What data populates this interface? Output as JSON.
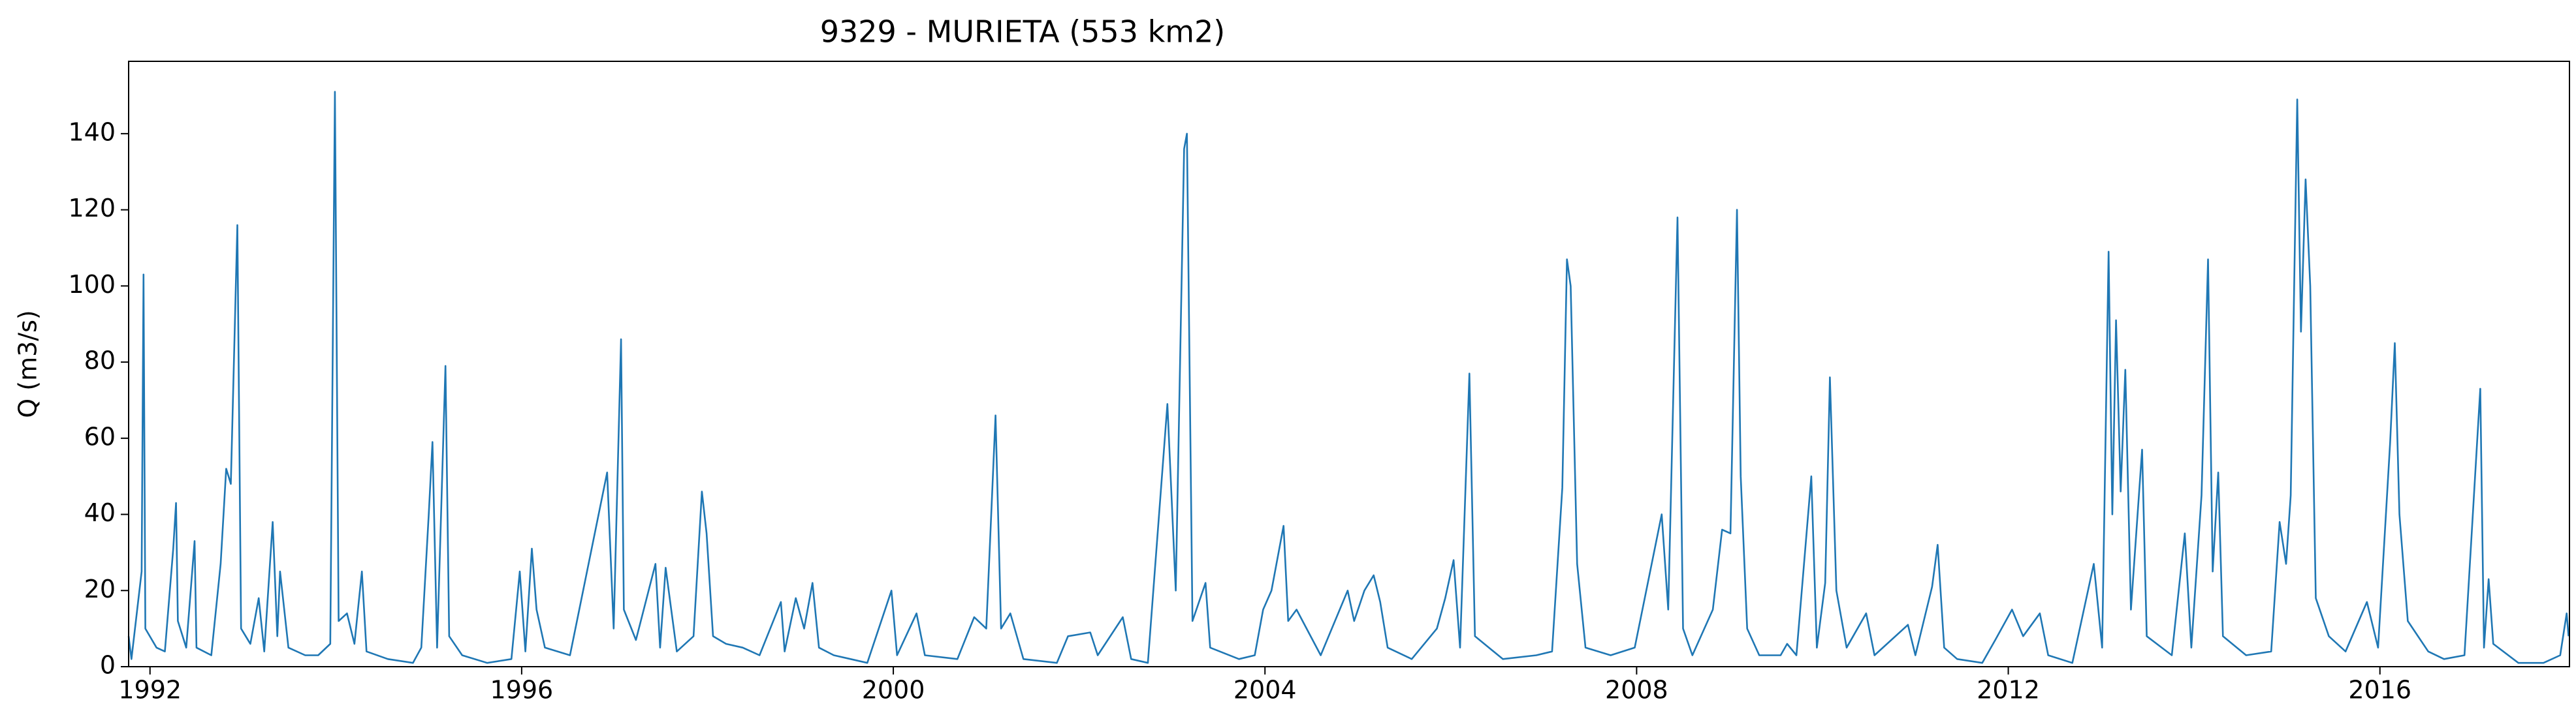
{
  "chart_data": {
    "type": "line",
    "title": "9329 - MURIETA (553 km2)",
    "ylabel": "Q (m3/s)",
    "color": "#1f77b4",
    "grid": false,
    "xlim": [
      1991.77,
      2018.04
    ],
    "ylim": [
      0,
      159
    ],
    "xticks": [
      1992,
      1996,
      2000,
      2004,
      2008,
      2012,
      2016
    ],
    "yticks": [
      0,
      20,
      40,
      60,
      80,
      100,
      120,
      140
    ],
    "x": [
      1991.77,
      1991.8,
      1991.91,
      1991.93,
      1991.95,
      1992.07,
      1992.16,
      1992.25,
      1992.28,
      1992.3,
      1992.39,
      1992.48,
      1992.5,
      1992.66,
      1992.76,
      1992.82,
      1992.87,
      1992.94,
      1992.98,
      1993.08,
      1993.17,
      1993.23,
      1993.32,
      1993.37,
      1993.4,
      1993.49,
      1993.67,
      1993.81,
      1993.94,
      1993.99,
      1994.03,
      1994.12,
      1994.2,
      1994.28,
      1994.33,
      1994.56,
      1994.83,
      1994.92,
      1995.0,
      1995.04,
      1995.09,
      1995.18,
      1995.22,
      1995.36,
      1995.63,
      1995.89,
      1995.98,
      1996.04,
      1996.11,
      1996.16,
      1996.25,
      1996.52,
      1996.92,
      1996.99,
      1997.07,
      1997.1,
      1997.23,
      1997.44,
      1997.49,
      1997.55,
      1997.67,
      1997.85,
      1997.94,
      1997.99,
      1998.06,
      1998.2,
      1998.38,
      1998.56,
      1998.79,
      1998.83,
      1998.95,
      1999.04,
      1999.13,
      1999.2,
      1999.36,
      1999.54,
      1999.72,
      1999.98,
      2000.04,
      2000.25,
      2000.34,
      2000.69,
      2000.87,
      2001.0,
      2001.1,
      2001.16,
      2001.26,
      2001.4,
      2001.76,
      2001.88,
      2002.12,
      2002.2,
      2002.47,
      2002.56,
      2002.74,
      2002.95,
      2003.04,
      2003.13,
      2003.16,
      2003.22,
      2003.36,
      2003.41,
      2003.72,
      2003.89,
      2003.98,
      2004.07,
      2004.2,
      2004.25,
      2004.34,
      2004.6,
      2004.89,
      2004.96,
      2005.07,
      2005.17,
      2005.24,
      2005.32,
      2005.58,
      2005.85,
      2005.94,
      2006.03,
      2006.1,
      2006.2,
      2006.26,
      2006.56,
      2006.92,
      2007.09,
      2007.2,
      2007.25,
      2007.29,
      2007.36,
      2007.45,
      2007.72,
      2007.98,
      2008.27,
      2008.34,
      2008.44,
      2008.5,
      2008.6,
      2008.82,
      2008.92,
      2009.01,
      2009.08,
      2009.12,
      2009.19,
      2009.32,
      2009.55,
      2009.62,
      2009.72,
      2009.88,
      2009.94,
      2010.03,
      2010.08,
      2010.15,
      2010.26,
      2010.47,
      2010.56,
      2010.92,
      2011.0,
      2011.18,
      2011.24,
      2011.31,
      2011.45,
      2011.72,
      2011.86,
      2012.04,
      2012.16,
      2012.34,
      2012.43,
      2012.69,
      2012.92,
      2013.01,
      2013.08,
      2013.12,
      2013.16,
      2013.21,
      2013.26,
      2013.32,
      2013.44,
      2013.49,
      2013.76,
      2013.9,
      2013.97,
      2014.08,
      2014.15,
      2014.2,
      2014.26,
      2014.31,
      2014.56,
      2014.83,
      2014.92,
      2014.99,
      2015.04,
      2015.11,
      2015.15,
      2015.2,
      2015.25,
      2015.31,
      2015.45,
      2015.63,
      2015.86,
      2015.98,
      2016.11,
      2016.16,
      2016.21,
      2016.3,
      2016.52,
      2016.69,
      2016.91,
      2017.08,
      2017.12,
      2017.17,
      2017.22,
      2017.49,
      2017.76,
      2017.94,
      2018.01,
      2018.03
    ],
    "values": [
      8,
      2,
      25,
      103,
      10,
      5,
      4,
      31,
      43,
      12,
      5,
      33,
      5,
      3,
      27,
      52,
      48,
      116,
      10,
      6,
      18,
      4,
      38,
      8,
      25,
      5,
      3,
      3,
      6,
      151,
      12,
      14,
      6,
      25,
      4,
      2,
      1,
      5,
      40,
      59,
      5,
      79,
      8,
      3,
      1,
      2,
      25,
      4,
      31,
      15,
      5,
      3,
      51,
      10,
      86,
      15,
      7,
      27,
      5,
      26,
      4,
      8,
      46,
      35,
      8,
      6,
      5,
      3,
      17,
      4,
      18,
      10,
      22,
      5,
      3,
      2,
      1,
      20,
      3,
      14,
      3,
      2,
      13,
      10,
      66,
      10,
      14,
      2,
      1,
      8,
      9,
      3,
      13,
      2,
      1,
      69,
      20,
      136,
      140,
      12,
      22,
      5,
      2,
      3,
      15,
      20,
      37,
      12,
      15,
      3,
      20,
      12,
      20,
      24,
      17,
      5,
      2,
      10,
      18,
      28,
      5,
      77,
      8,
      2,
      3,
      4,
      47,
      107,
      100,
      27,
      5,
      3,
      5,
      40,
      15,
      118,
      10,
      3,
      15,
      36,
      35,
      120,
      50,
      10,
      3,
      3,
      6,
      3,
      50,
      5,
      22,
      76,
      20,
      5,
      14,
      3,
      11,
      3,
      21,
      32,
      5,
      2,
      1,
      7,
      15,
      8,
      14,
      3,
      1,
      27,
      5,
      109,
      40,
      91,
      46,
      78,
      15,
      57,
      8,
      3,
      35,
      5,
      45,
      107,
      25,
      51,
      8,
      3,
      4,
      38,
      27,
      45,
      149,
      88,
      128,
      100,
      18,
      8,
      4,
      17,
      5,
      59,
      85,
      40,
      12,
      4,
      2,
      3,
      73,
      5,
      23,
      6,
      1,
      1,
      3,
      14,
      8
    ]
  }
}
